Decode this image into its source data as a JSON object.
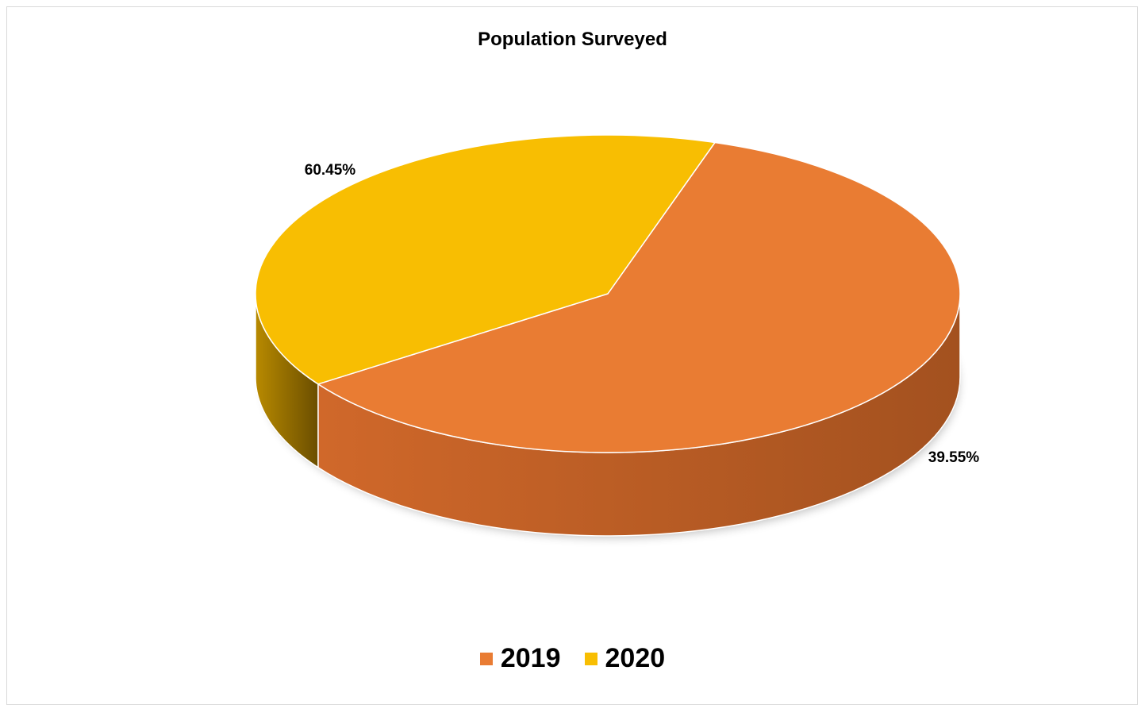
{
  "chart_data": {
    "type": "pie",
    "style": "3d",
    "title": "Population Surveyed",
    "categories": [
      "2019",
      "2020"
    ],
    "values": [
      60.45,
      39.55
    ],
    "data_labels": [
      "60.45%",
      "39.55%"
    ],
    "colors": [
      "#E97C33",
      "#F8BE02"
    ],
    "side_colors": {
      "2019": [
        "#D0682A",
        "#A3511F"
      ],
      "2020": [
        "#B88A00",
        "#6B4E00"
      ]
    },
    "legend": {
      "position": "bottom",
      "entries": [
        "2019",
        "2020"
      ]
    }
  }
}
